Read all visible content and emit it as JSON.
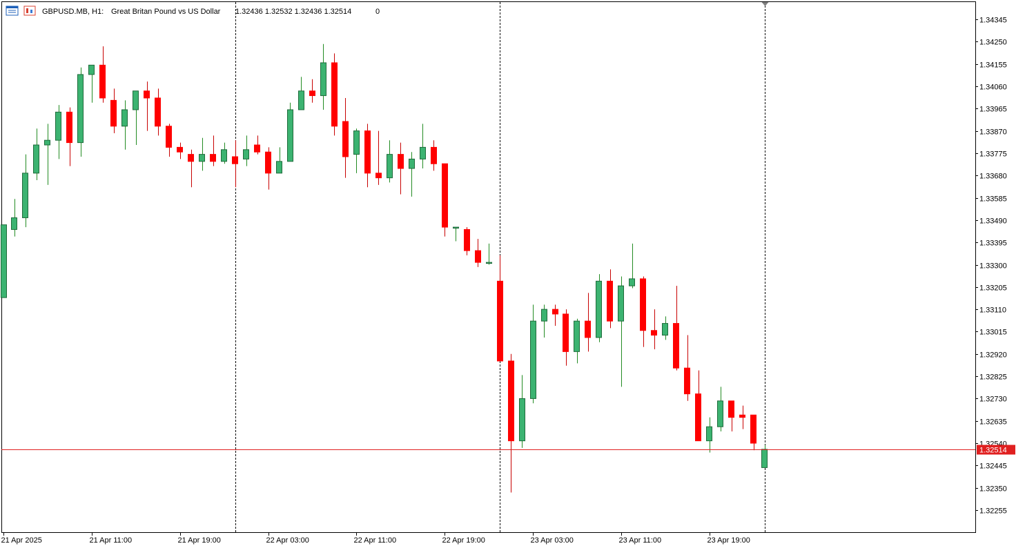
{
  "header": {
    "symbol": "GBPUSD.MB, H1:",
    "description": "Great Britan Pound vs US Dollar",
    "ohlc": "1.32436 1.32532 1.32436 1.32514",
    "volume": "0",
    "icons": [
      "window-list-icon",
      "chart-type-icon"
    ]
  },
  "current_price_label": "1.32514",
  "colors": {
    "bull": "#3cb371",
    "bear": "#ff0000",
    "wick_bull": "#228b22",
    "wick_bear": "#c80000",
    "price_line": "#e02020",
    "axis": "#000000"
  },
  "chart_data": {
    "type": "candlestick",
    "timeframe": "H1",
    "symbol": "GBPUSD.MB",
    "ylim": [
      1.3218,
      1.3439
    ],
    "y_ticks": [
      "1.34345",
      "1.34250",
      "1.34155",
      "1.34060",
      "1.33965",
      "1.33870",
      "1.33775",
      "1.33680",
      "1.33585",
      "1.33490",
      "1.33395",
      "1.33300",
      "1.33205",
      "1.33110",
      "1.33015",
      "1.32920",
      "1.32825",
      "1.32730",
      "1.32635",
      "1.32540",
      "1.32445",
      "1.32350",
      "1.32255"
    ],
    "x_tick_labels": [
      {
        "index": 0,
        "label": "21 Apr 2025"
      },
      {
        "index": 8,
        "label": "21 Apr 11:00"
      },
      {
        "index": 16,
        "label": "21 Apr 19:00"
      },
      {
        "index": 24,
        "label": "22 Apr 03:00"
      },
      {
        "index": 32,
        "label": "22 Apr 11:00"
      },
      {
        "index": 40,
        "label": "22 Apr 19:00"
      },
      {
        "index": 48,
        "label": "23 Apr 03:00"
      },
      {
        "index": 56,
        "label": "23 Apr 11:00"
      },
      {
        "index": 64,
        "label": "23 Apr 19:00"
      }
    ],
    "period_separators": [
      21,
      45,
      69
    ],
    "current_price": 1.32514,
    "candles": [
      {
        "o": 1.3316,
        "h": 1.3347,
        "l": 1.3316,
        "c": 1.3347
      },
      {
        "o": 1.3345,
        "h": 1.3358,
        "l": 1.3342,
        "c": 1.335
      },
      {
        "o": 1.335,
        "h": 1.3377,
        "l": 1.3346,
        "c": 1.3369
      },
      {
        "o": 1.3369,
        "h": 1.3388,
        "l": 1.3366,
        "c": 1.3381
      },
      {
        "o": 1.3381,
        "h": 1.339,
        "l": 1.3364,
        "c": 1.3383
      },
      {
        "o": 1.3383,
        "h": 1.3398,
        "l": 1.3375,
        "c": 1.3395
      },
      {
        "o": 1.3395,
        "h": 1.3397,
        "l": 1.3372,
        "c": 1.3382
      },
      {
        "o": 1.3382,
        "h": 1.3414,
        "l": 1.3376,
        "c": 1.3411
      },
      {
        "o": 1.3411,
        "h": 1.3415,
        "l": 1.3399,
        "c": 1.3415
      },
      {
        "o": 1.3415,
        "h": 1.3423,
        "l": 1.3399,
        "c": 1.3401
      },
      {
        "o": 1.34,
        "h": 1.3405,
        "l": 1.3386,
        "c": 1.3389
      },
      {
        "o": 1.3389,
        "h": 1.34,
        "l": 1.3379,
        "c": 1.3396
      },
      {
        "o": 1.3396,
        "h": 1.3404,
        "l": 1.3381,
        "c": 1.3404
      },
      {
        "o": 1.3404,
        "h": 1.3408,
        "l": 1.3387,
        "c": 1.3401
      },
      {
        "o": 1.3401,
        "h": 1.3405,
        "l": 1.3385,
        "c": 1.3389
      },
      {
        "o": 1.3389,
        "h": 1.339,
        "l": 1.3376,
        "c": 1.338
      },
      {
        "o": 1.338,
        "h": 1.3382,
        "l": 1.3375,
        "c": 1.3378
      },
      {
        "o": 1.3377,
        "h": 1.3379,
        "l": 1.3363,
        "c": 1.3374
      },
      {
        "o": 1.3374,
        "h": 1.3384,
        "l": 1.337,
        "c": 1.3377
      },
      {
        "o": 1.3377,
        "h": 1.3385,
        "l": 1.3372,
        "c": 1.3374
      },
      {
        "o": 1.3374,
        "h": 1.3382,
        "l": 1.3373,
        "c": 1.3379
      },
      {
        "o": 1.3376,
        "h": 1.3383,
        "l": 1.3363,
        "c": 1.3373
      },
      {
        "o": 1.3375,
        "h": 1.3385,
        "l": 1.3372,
        "c": 1.3379
      },
      {
        "o": 1.3381,
        "h": 1.3385,
        "l": 1.3377,
        "c": 1.3378
      },
      {
        "o": 1.3378,
        "h": 1.338,
        "l": 1.3362,
        "c": 1.3369
      },
      {
        "o": 1.3369,
        "h": 1.338,
        "l": 1.3369,
        "c": 1.3374
      },
      {
        "o": 1.3374,
        "h": 1.3399,
        "l": 1.3374,
        "c": 1.3396
      },
      {
        "o": 1.3396,
        "h": 1.341,
        "l": 1.3396,
        "c": 1.3404
      },
      {
        "o": 1.3404,
        "h": 1.3409,
        "l": 1.3399,
        "c": 1.3402
      },
      {
        "o": 1.3402,
        "h": 1.3424,
        "l": 1.3396,
        "c": 1.3416
      },
      {
        "o": 1.3416,
        "h": 1.342,
        "l": 1.3385,
        "c": 1.3389
      },
      {
        "o": 1.3391,
        "h": 1.3401,
        "l": 1.3367,
        "c": 1.3376
      },
      {
        "o": 1.3377,
        "h": 1.3388,
        "l": 1.3369,
        "c": 1.3387
      },
      {
        "o": 1.3387,
        "h": 1.339,
        "l": 1.3363,
        "c": 1.3369
      },
      {
        "o": 1.3369,
        "h": 1.3387,
        "l": 1.3364,
        "c": 1.3367
      },
      {
        "o": 1.3367,
        "h": 1.3383,
        "l": 1.3365,
        "c": 1.3377
      },
      {
        "o": 1.3377,
        "h": 1.3382,
        "l": 1.336,
        "c": 1.3371
      },
      {
        "o": 1.3371,
        "h": 1.3378,
        "l": 1.3359,
        "c": 1.3375
      },
      {
        "o": 1.3375,
        "h": 1.339,
        "l": 1.3371,
        "c": 1.338
      },
      {
        "o": 1.338,
        "h": 1.3383,
        "l": 1.337,
        "c": 1.3373
      },
      {
        "o": 1.3373,
        "h": 1.3373,
        "l": 1.3342,
        "c": 1.3346
      },
      {
        "o": 1.3346,
        "h": 1.3346,
        "l": 1.334,
        "c": 1.3346
      },
      {
        "o": 1.3345,
        "h": 1.3346,
        "l": 1.3334,
        "c": 1.3336
      },
      {
        "o": 1.3336,
        "h": 1.3341,
        "l": 1.3329,
        "c": 1.3331
      },
      {
        "o": 1.3331,
        "h": 1.3339,
        "l": 1.333,
        "c": 1.3331
      },
      {
        "o": 1.3323,
        "h": 1.3334,
        "l": 1.329,
        "c": 1.3289
      },
      {
        "o": 1.3289,
        "h": 1.3292,
        "l": 1.3233,
        "c": 1.3255
      },
      {
        "o": 1.3255,
        "h": 1.3283,
        "l": 1.3252,
        "c": 1.3273
      },
      {
        "o": 1.3273,
        "h": 1.3313,
        "l": 1.3271,
        "c": 1.3306
      },
      {
        "o": 1.3306,
        "h": 1.3313,
        "l": 1.3299,
        "c": 1.3311
      },
      {
        "o": 1.3311,
        "h": 1.3313,
        "l": 1.3304,
        "c": 1.3309
      },
      {
        "o": 1.3309,
        "h": 1.3311,
        "l": 1.3287,
        "c": 1.3293
      },
      {
        "o": 1.3293,
        "h": 1.3307,
        "l": 1.3288,
        "c": 1.3306
      },
      {
        "o": 1.3306,
        "h": 1.3318,
        "l": 1.3293,
        "c": 1.3299
      },
      {
        "o": 1.3299,
        "h": 1.3326,
        "l": 1.3297,
        "c": 1.3323
      },
      {
        "o": 1.3323,
        "h": 1.3328,
        "l": 1.3303,
        "c": 1.3306
      },
      {
        "o": 1.3306,
        "h": 1.3325,
        "l": 1.3278,
        "c": 1.3321
      },
      {
        "o": 1.3321,
        "h": 1.3339,
        "l": 1.332,
        "c": 1.3324
      },
      {
        "o": 1.3324,
        "h": 1.3325,
        "l": 1.3295,
        "c": 1.3302
      },
      {
        "o": 1.3302,
        "h": 1.3311,
        "l": 1.3294,
        "c": 1.33
      },
      {
        "o": 1.33,
        "h": 1.3308,
        "l": 1.3298,
        "c": 1.3305
      },
      {
        "o": 1.3305,
        "h": 1.3321,
        "l": 1.3285,
        "c": 1.3286
      },
      {
        "o": 1.3286,
        "h": 1.33,
        "l": 1.3272,
        "c": 1.3275
      },
      {
        "o": 1.3275,
        "h": 1.3285,
        "l": 1.3255,
        "c": 1.3255
      },
      {
        "o": 1.3255,
        "h": 1.3265,
        "l": 1.325,
        "c": 1.3261
      },
      {
        "o": 1.3261,
        "h": 1.3278,
        "l": 1.3259,
        "c": 1.3272
      },
      {
        "o": 1.3272,
        "h": 1.3272,
        "l": 1.3259,
        "c": 1.3265
      },
      {
        "o": 1.3266,
        "h": 1.327,
        "l": 1.326,
        "c": 1.3265
      },
      {
        "o": 1.3266,
        "h": 1.3266,
        "l": 1.3251,
        "c": 1.3254
      },
      {
        "o": 1.32436,
        "h": 1.32532,
        "l": 1.32436,
        "c": 1.32514
      }
    ]
  }
}
